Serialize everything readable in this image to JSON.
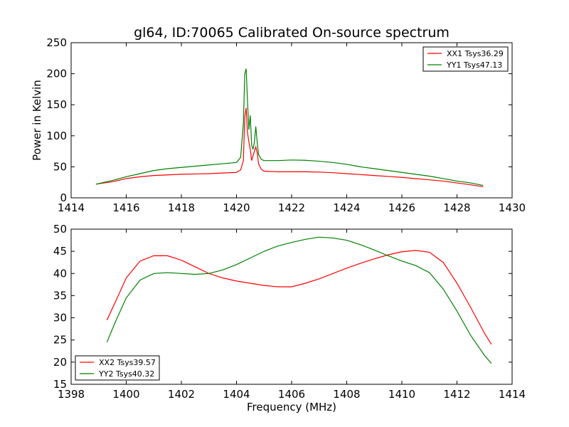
{
  "chart_data": [
    {
      "type": "line",
      "title": "gl64, ID:70065 Calibrated On-source spectrum",
      "xlabel": "",
      "ylabel": "Power in Kelvin",
      "xlim": [
        1414,
        1430
      ],
      "ylim": [
        0,
        250
      ],
      "xticks": [
        "1414",
        "1416",
        "1418",
        "1420",
        "1422",
        "1424",
        "1426",
        "1428",
        "1430"
      ],
      "yticks": [
        "0",
        "50",
        "100",
        "150",
        "200",
        "250"
      ],
      "legend_position": "upper-right",
      "grid": false,
      "series": [
        {
          "name": "XX1 Tsys36.29",
          "color": "#ff0000",
          "x": [
            1414.9,
            1415.5,
            1416.0,
            1416.5,
            1417.0,
            1417.5,
            1418.0,
            1418.5,
            1419.0,
            1419.5,
            1420.0,
            1420.15,
            1420.25,
            1420.3,
            1420.35,
            1420.4,
            1420.45,
            1420.5,
            1420.55,
            1420.6,
            1420.65,
            1420.7,
            1420.75,
            1420.8,
            1420.9,
            1421.0,
            1421.5,
            1422.0,
            1422.5,
            1423.0,
            1423.5,
            1424.0,
            1424.5,
            1425.0,
            1425.5,
            1426.0,
            1426.5,
            1427.0,
            1427.5,
            1428.0,
            1428.5,
            1428.95
          ],
          "y": [
            22,
            26,
            31,
            34,
            36,
            37,
            38,
            38.5,
            39,
            40,
            41,
            45,
            60,
            130,
            145,
            105,
            90,
            78,
            60,
            68,
            75,
            82,
            73,
            55,
            46,
            43,
            42,
            42,
            42,
            41.5,
            40.5,
            39,
            37.5,
            36,
            34.5,
            33,
            31,
            29,
            27,
            24,
            21,
            18
          ]
        },
        {
          "name": "YY1 Tsys47.13",
          "color": "#008000",
          "x": [
            1414.9,
            1415.5,
            1416.0,
            1416.5,
            1417.0,
            1417.5,
            1418.0,
            1418.5,
            1419.0,
            1419.5,
            1420.0,
            1420.15,
            1420.25,
            1420.3,
            1420.35,
            1420.4,
            1420.45,
            1420.5,
            1420.55,
            1420.6,
            1420.65,
            1420.7,
            1420.75,
            1420.8,
            1420.9,
            1421.0,
            1421.5,
            1422.0,
            1422.5,
            1423.0,
            1423.5,
            1424.0,
            1424.5,
            1425.0,
            1425.5,
            1426.0,
            1426.5,
            1427.0,
            1427.5,
            1428.0,
            1428.5,
            1428.95
          ],
          "y": [
            22,
            28,
            34,
            39,
            44,
            47,
            49,
            51,
            53,
            55,
            57,
            65,
            120,
            200,
            208,
            155,
            110,
            133,
            85,
            78,
            90,
            115,
            90,
            70,
            62,
            60,
            60,
            61,
            60.5,
            59,
            57,
            54,
            50,
            47,
            44,
            41,
            38,
            35,
            31,
            27,
            24,
            20
          ]
        }
      ]
    },
    {
      "type": "line",
      "title": "",
      "xlabel": "Frequency (MHz)",
      "ylabel": "",
      "xlim": [
        1398,
        1414
      ],
      "ylim": [
        15,
        50
      ],
      "xticks": [
        "1398",
        "1400",
        "1402",
        "1404",
        "1406",
        "1408",
        "1410",
        "1412",
        "1414"
      ],
      "yticks": [
        "15",
        "20",
        "25",
        "30",
        "35",
        "40",
        "45",
        "50"
      ],
      "legend_position": "lower-left",
      "grid": false,
      "series": [
        {
          "name": "XX2 Tsys39.57",
          "color": "#ff0000",
          "x": [
            1399.3,
            1399.6,
            1400.0,
            1400.5,
            1401.0,
            1401.5,
            1402.0,
            1402.5,
            1403.0,
            1403.5,
            1404.0,
            1404.5,
            1405.0,
            1405.5,
            1406.0,
            1406.5,
            1407.0,
            1407.5,
            1408.0,
            1408.5,
            1409.0,
            1409.5,
            1410.0,
            1410.5,
            1411.0,
            1411.5,
            1412.0,
            1412.5,
            1413.0,
            1413.25
          ],
          "y": [
            29.5,
            33.5,
            39,
            42.8,
            44,
            44,
            43,
            41.5,
            40,
            39,
            38.3,
            37.8,
            37.3,
            37,
            37,
            37.8,
            38.8,
            40,
            41.2,
            42.3,
            43.3,
            44.2,
            44.9,
            45.2,
            44.8,
            42.5,
            37.8,
            32.3,
            26.5,
            24
          ]
        },
        {
          "name": "YY2 Tsys40.32",
          "color": "#008000",
          "x": [
            1399.3,
            1399.6,
            1400.0,
            1400.5,
            1401.0,
            1401.5,
            1402.0,
            1402.5,
            1403.0,
            1403.5,
            1404.0,
            1404.5,
            1405.0,
            1405.5,
            1406.0,
            1406.5,
            1407.0,
            1407.5,
            1408.0,
            1408.5,
            1409.0,
            1409.5,
            1410.0,
            1410.5,
            1411.0,
            1411.5,
            1412.0,
            1412.5,
            1413.0,
            1413.25
          ],
          "y": [
            24.5,
            29,
            34.5,
            38.5,
            40,
            40.2,
            40,
            39.8,
            40,
            40.8,
            42,
            43.5,
            45,
            46.2,
            47,
            47.7,
            48.2,
            48,
            47.5,
            46.5,
            45.3,
            44,
            42.8,
            41.8,
            40.2,
            36.5,
            31.5,
            26,
            21.5,
            19.7
          ]
        }
      ]
    }
  ]
}
